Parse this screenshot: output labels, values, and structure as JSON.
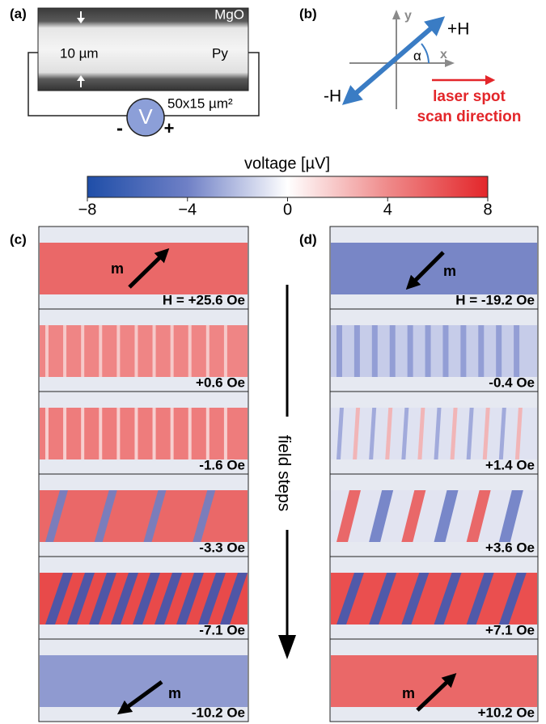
{
  "panel_a": {
    "label": "(a)",
    "top_layer": "MgO",
    "width_label": "10 µm",
    "film": "Py",
    "size": "50x15 µm²",
    "meter": "V",
    "minus": "-",
    "plus": "+"
  },
  "panel_b": {
    "label": "(b)",
    "axis_y": "y",
    "axis_x": "x",
    "angle": "α",
    "plus_h": "+H",
    "minus_h": "-H",
    "scan_line1": "laser spot",
    "scan_line2": "scan direction"
  },
  "colorbar": {
    "title": "voltage [µV]",
    "ticks": [
      "−8",
      "−4",
      "0",
      "4",
      "8"
    ]
  },
  "field_steps": "field steps",
  "panel_c": {
    "label": "(c)",
    "frames": [
      {
        "field": "H = +25.6 Oe",
        "m": "m"
      },
      {
        "field": "+0.6 Oe"
      },
      {
        "field": "-1.6 Oe"
      },
      {
        "field": "-3.3 Oe"
      },
      {
        "field": "-7.1 Oe"
      },
      {
        "field": "-10.2 Oe",
        "m": "m"
      }
    ]
  },
  "panel_d": {
    "label": "(d)",
    "frames": [
      {
        "field": "H = -19.2 Oe",
        "m": "m"
      },
      {
        "field": "-0.4 Oe"
      },
      {
        "field": "+1.4 Oe"
      },
      {
        "field": "+3.6 Oe"
      },
      {
        "field": "+7.1 Oe"
      },
      {
        "field": "+10.2 Oe",
        "m": "m"
      }
    ]
  }
}
